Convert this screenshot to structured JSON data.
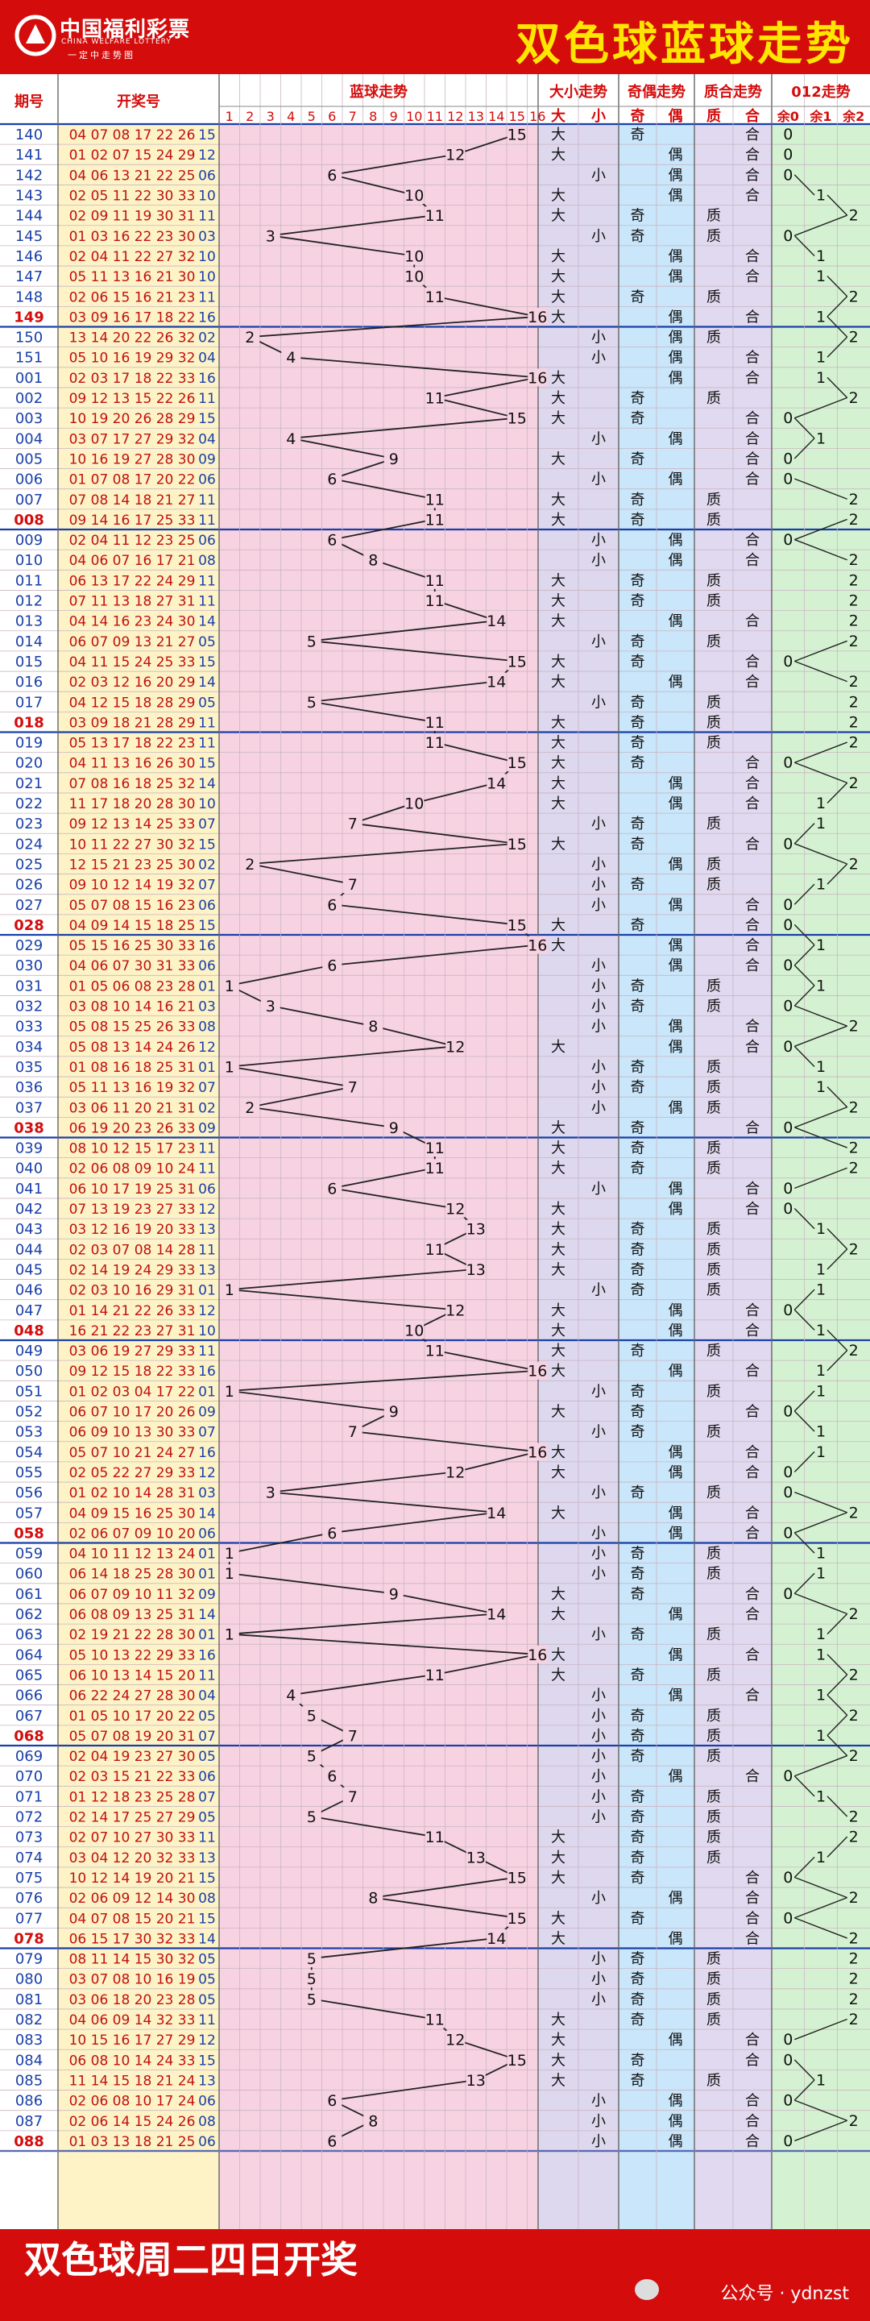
{
  "header": {
    "logo_cn": "中国福利彩票",
    "logo_en": "CHINA WELFARE LOTTERY",
    "logo_slogan": "一定中走势图",
    "title": "双色球蓝球走势"
  },
  "columns": {
    "issue": "期号",
    "draw": "开奖号",
    "trend": "蓝球走势",
    "size": "大小走势",
    "parity": "奇偶走势",
    "prime": "质合走势",
    "mod": "012走势"
  },
  "subheaders": {
    "size": [
      "大",
      "小"
    ],
    "parity": [
      "奇",
      "偶"
    ],
    "prime": [
      "质",
      "合"
    ],
    "mod": [
      "余0",
      "余1",
      "余2"
    ]
  },
  "labels": {
    "big": "大",
    "small": "小",
    "odd": "奇",
    "even": "偶",
    "prime": "质",
    "composite": "合"
  },
  "colors": {
    "red": "#d40c0c",
    "yellow": "#ffe600",
    "draw_bg": "#fdf3c6",
    "trend_bg": "#f7d2e1",
    "size_bg": "#ddd8ee",
    "parity_bg": "#c9e6fa",
    "prime_bg": "#e0d9ef",
    "mod_bg": "#d4f2d1"
  },
  "chart_data": {
    "type": "table",
    "title": "双色球蓝球走势",
    "columns": [
      "1",
      "2",
      "3",
      "4",
      "5",
      "6",
      "7",
      "8",
      "9",
      "10",
      "11",
      "12",
      "13",
      "14",
      "15",
      "16"
    ],
    "rows": [
      {
        "issue": "140",
        "draw": "04 07 08 17 22 26 15"
      },
      {
        "issue": "141",
        "draw": "01 02 07 15 24 29 12"
      },
      {
        "issue": "142",
        "draw": "04 06 13 21 22 25 06"
      },
      {
        "issue": "143",
        "draw": "02 05 11 22 30 33 10"
      },
      {
        "issue": "144",
        "draw": "02 09 11 19 30 31 11"
      },
      {
        "issue": "145",
        "draw": "01 03 16 22 23 30 03"
      },
      {
        "issue": "146",
        "draw": "02 04 11 22 27 32 10"
      },
      {
        "issue": "147",
        "draw": "05 11 13 16 21 30 10"
      },
      {
        "issue": "148",
        "draw": "02 06 15 16 21 23 11"
      },
      {
        "issue": "149",
        "draw": "03 09 16 17 18 22 16"
      },
      {
        "issue": "150",
        "draw": "13 14 20 22 26 32 02"
      },
      {
        "issue": "151",
        "draw": "05 10 16 19 29 32 04"
      },
      {
        "issue": "001",
        "draw": "02 03 17 18 22 33 16"
      },
      {
        "issue": "002",
        "draw": "09 12 13 15 22 26 11"
      },
      {
        "issue": "003",
        "draw": "10 19 20 26 28 29 15"
      },
      {
        "issue": "004",
        "draw": "03 07 17 27 29 32 04"
      },
      {
        "issue": "005",
        "draw": "10 16 19 27 28 30 09"
      },
      {
        "issue": "006",
        "draw": "01 07 08 17 20 22 06"
      },
      {
        "issue": "007",
        "draw": "07 08 14 18 21 27 11"
      },
      {
        "issue": "008",
        "draw": "09 14 16 17 25 33 11"
      },
      {
        "issue": "009",
        "draw": "02 04 11 12 23 25 06"
      },
      {
        "issue": "010",
        "draw": "04 06 07 16 17 21 08"
      },
      {
        "issue": "011",
        "draw": "06 13 17 22 24 29 11"
      },
      {
        "issue": "012",
        "draw": "07 11 13 18 27 31 11"
      },
      {
        "issue": "013",
        "draw": "04 14 16 23 24 30 14"
      },
      {
        "issue": "014",
        "draw": "06 07 09 13 21 27 05"
      },
      {
        "issue": "015",
        "draw": "04 11 15 24 25 33 15"
      },
      {
        "issue": "016",
        "draw": "02 03 12 16 20 29 14"
      },
      {
        "issue": "017",
        "draw": "04 12 15 18 28 29 05"
      },
      {
        "issue": "018",
        "draw": "03 09 18 21 28 29 11"
      },
      {
        "issue": "019",
        "draw": "05 13 17 18 22 23 11"
      },
      {
        "issue": "020",
        "draw": "04 11 13 16 26 30 15"
      },
      {
        "issue": "021",
        "draw": "07 08 16 18 25 32 14"
      },
      {
        "issue": "022",
        "draw": "11 17 18 20 28 30 10"
      },
      {
        "issue": "023",
        "draw": "09 12 13 14 25 33 07"
      },
      {
        "issue": "024",
        "draw": "10 11 22 27 30 32 15"
      },
      {
        "issue": "025",
        "draw": "12 15 21 23 25 30 02"
      },
      {
        "issue": "026",
        "draw": "09 10 12 14 19 32 07"
      },
      {
        "issue": "027",
        "draw": "05 07 08 15 16 23 06"
      },
      {
        "issue": "028",
        "draw": "04 09 14 15 18 25 15"
      },
      {
        "issue": "029",
        "draw": "05 15 16 25 30 33 16"
      },
      {
        "issue": "030",
        "draw": "04 06 07 30 31 33 06"
      },
      {
        "issue": "031",
        "draw": "01 05 06 08 23 28 01"
      },
      {
        "issue": "032",
        "draw": "03 08 10 14 16 21 03"
      },
      {
        "issue": "033",
        "draw": "05 08 15 25 26 33 08"
      },
      {
        "issue": "034",
        "draw": "05 08 13 14 24 26 12"
      },
      {
        "issue": "035",
        "draw": "01 08 16 18 25 31 01"
      },
      {
        "issue": "036",
        "draw": "05 11 13 16 19 32 07"
      },
      {
        "issue": "037",
        "draw": "03 06 11 20 21 31 02"
      },
      {
        "issue": "038",
        "draw": "06 19 20 23 26 33 09"
      },
      {
        "issue": "039",
        "draw": "08 10 12 15 17 23 11"
      },
      {
        "issue": "040",
        "draw": "02 06 08 09 10 24 11"
      },
      {
        "issue": "041",
        "draw": "06 10 17 19 25 31 06"
      },
      {
        "issue": "042",
        "draw": "07 13 19 23 27 33 12"
      },
      {
        "issue": "043",
        "draw": "03 12 16 19 20 33 13"
      },
      {
        "issue": "044",
        "draw": "02 03 07 08 14 28 11"
      },
      {
        "issue": "045",
        "draw": "02 14 19 24 29 33 13"
      },
      {
        "issue": "046",
        "draw": "02 03 10 16 29 31 01"
      },
      {
        "issue": "047",
        "draw": "01 14 21 22 26 33 12"
      },
      {
        "issue": "048",
        "draw": "16 21 22 23 27 31 10"
      },
      {
        "issue": "049",
        "draw": "03 06 19 27 29 33 11"
      },
      {
        "issue": "050",
        "draw": "09 12 15 18 22 33 16"
      },
      {
        "issue": "051",
        "draw": "01 02 03 04 17 22 01"
      },
      {
        "issue": "052",
        "draw": "06 07 10 17 20 26 09"
      },
      {
        "issue": "053",
        "draw": "06 09 10 13 30 33 07"
      },
      {
        "issue": "054",
        "draw": "05 07 10 21 24 27 16"
      },
      {
        "issue": "055",
        "draw": "02 05 22 27 29 33 12"
      },
      {
        "issue": "056",
        "draw": "01 02 10 14 28 31 03"
      },
      {
        "issue": "057",
        "draw": "04 09 15 16 25 30 14"
      },
      {
        "issue": "058",
        "draw": "02 06 07 09 10 20 06"
      },
      {
        "issue": "059",
        "draw": "04 10 11 12 13 24 01"
      },
      {
        "issue": "060",
        "draw": "06 14 18 25 28 30 01"
      },
      {
        "issue": "061",
        "draw": "06 07 09 10 11 32 09"
      },
      {
        "issue": "062",
        "draw": "06 08 09 13 25 31 14"
      },
      {
        "issue": "063",
        "draw": "02 19 21 22 28 30 01"
      },
      {
        "issue": "064",
        "draw": "05 10 13 22 29 33 16"
      },
      {
        "issue": "065",
        "draw": "06 10 13 14 15 20 11"
      },
      {
        "issue": "066",
        "draw": "06 22 24 27 28 30 04"
      },
      {
        "issue": "067",
        "draw": "01 05 10 17 20 22 05"
      },
      {
        "issue": "068",
        "draw": "05 07 08 19 20 31 07"
      },
      {
        "issue": "069",
        "draw": "02 04 19 23 27 30 05"
      },
      {
        "issue": "070",
        "draw": "02 03 15 21 22 33 06"
      },
      {
        "issue": "071",
        "draw": "01 12 18 23 25 28 07"
      },
      {
        "issue": "072",
        "draw": "02 14 17 25 27 29 05"
      },
      {
        "issue": "073",
        "draw": "02 07 10 27 30 33 11"
      },
      {
        "issue": "074",
        "draw": "03 04 12 20 32 33 13"
      },
      {
        "issue": "075",
        "draw": "10 12 14 19 20 21 15"
      },
      {
        "issue": "076",
        "draw": "02 06 09 12 14 30 08"
      },
      {
        "issue": "077",
        "draw": "04 07 08 15 20 21 15"
      },
      {
        "issue": "078",
        "draw": "06 15 17 30 32 33 14"
      },
      {
        "issue": "079",
        "draw": "08 11 14 15 30 32 05"
      },
      {
        "issue": "080",
        "draw": "03 07 08 10 16 19 05"
      },
      {
        "issue": "081",
        "draw": "03 06 18 20 23 28 05"
      },
      {
        "issue": "082",
        "draw": "04 06 09 14 32 33 11"
      },
      {
        "issue": "083",
        "draw": "10 15 16 17 27 29 12"
      },
      {
        "issue": "084",
        "draw": "06 08 10 14 24 33 15"
      },
      {
        "issue": "085",
        "draw": "11 14 15 18 21 24 13"
      },
      {
        "issue": "086",
        "draw": "02 06 08 10 17 24 06"
      },
      {
        "issue": "087",
        "draw": "02 06 14 15 24 26 08"
      },
      {
        "issue": "088",
        "draw": "01 03 13 18 21 25 06"
      }
    ]
  },
  "footer": {
    "text": "双色球周二四日开奖",
    "watermark": "公众号 · ydnzst"
  }
}
